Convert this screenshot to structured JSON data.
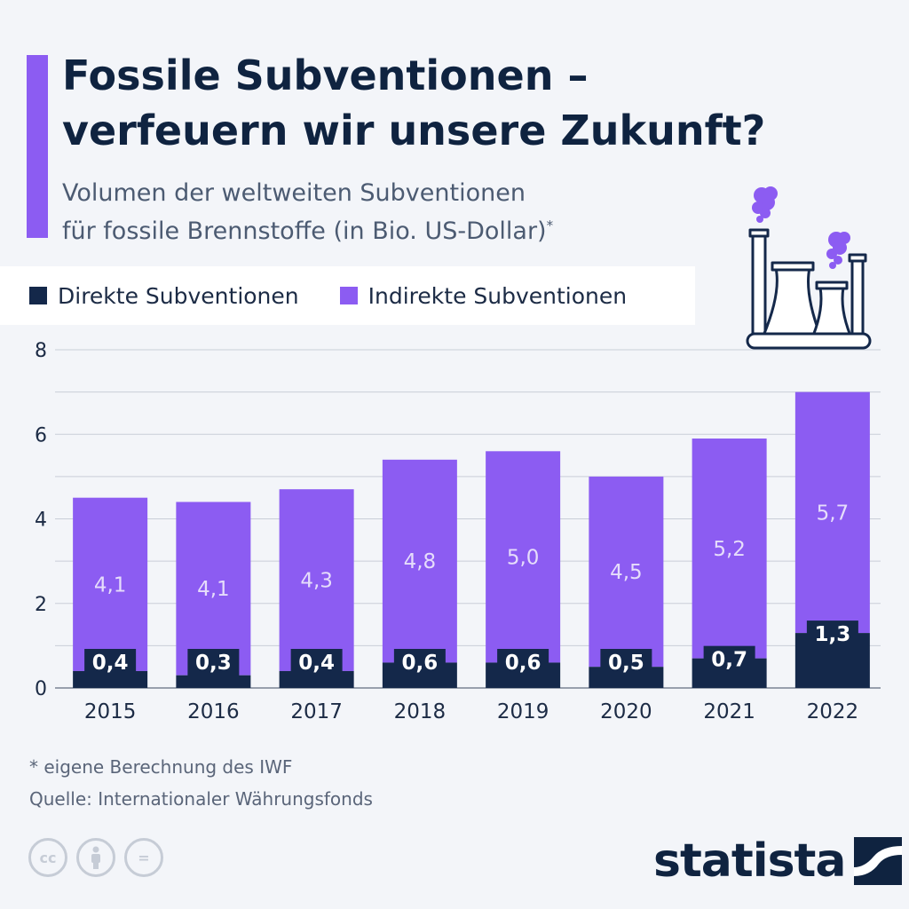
{
  "title_lines": [
    "Fossile Subventionen –",
    "verfeuern wir unsere Zukunft?"
  ],
  "subtitle_lines": [
    "Volumen der weltweiten Subventionen",
    "für fossile Brennstoffe (in Bio. US-Dollar)"
  ],
  "subtitle_marker": "*",
  "legend": {
    "direct": "Direkte Subventionen",
    "indirect": "Indirekte Subventionen"
  },
  "colors": {
    "direct": "#14284a",
    "indirect": "#8c5cf2",
    "accent": "#8c5cf2",
    "grid": "#c9ced8",
    "background": "#f3f5f9"
  },
  "icons": {
    "illustration": "power-plant-icon",
    "license": [
      "cc-icon",
      "by-icon",
      "nd-icon"
    ],
    "logo": "statista-logo-icon"
  },
  "chart_data": {
    "type": "bar",
    "stacked": true,
    "categories": [
      "2015",
      "2016",
      "2017",
      "2018",
      "2019",
      "2020",
      "2021",
      "2022"
    ],
    "series": [
      {
        "name": "Direkte Subventionen",
        "values": [
          0.4,
          0.3,
          0.4,
          0.6,
          0.6,
          0.5,
          0.7,
          1.3
        ],
        "labels": [
          "0,4",
          "0,3",
          "0,4",
          "0,6",
          "0,6",
          "0,5",
          "0,7",
          "1,3"
        ]
      },
      {
        "name": "Indirekte Subventionen",
        "values": [
          4.1,
          4.1,
          4.3,
          4.8,
          5.0,
          4.5,
          5.2,
          5.7
        ],
        "labels": [
          "4,1",
          "4,1",
          "4,3",
          "4,8",
          "5,0",
          "4,5",
          "5,2",
          "5,7"
        ]
      }
    ],
    "ylim": [
      0,
      8
    ],
    "yticks": [
      0,
      2,
      4,
      6,
      8
    ],
    "ytick_labels": [
      "0",
      "2",
      "4",
      "6",
      "8"
    ],
    "grid": true,
    "legend_position": "top-left"
  },
  "footnote": {
    "note": "* eigene Berechnung des IWF",
    "source": "Quelle: Internationaler Währungsfonds"
  },
  "license_labels": {
    "cc": "cc",
    "nd": "="
  },
  "logo_text": "statista"
}
